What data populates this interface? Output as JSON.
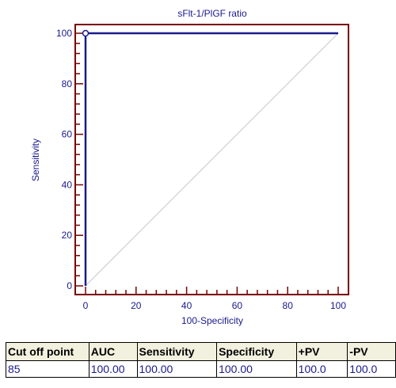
{
  "chart_data": {
    "type": "line",
    "title": "sFlt-1/PlGF ratio",
    "xlabel": "100-Specificity",
    "ylabel": "Sensitivity",
    "xlim": [
      0,
      100
    ],
    "ylim": [
      0,
      100
    ],
    "xticks": [
      0,
      20,
      40,
      60,
      80,
      100
    ],
    "yticks": [
      0,
      20,
      40,
      60,
      80,
      100
    ],
    "grid": false,
    "series": [
      {
        "x": [
          0,
          0,
          100
        ],
        "y": [
          0,
          100,
          100
        ],
        "color": "#1a1a8c"
      }
    ],
    "reference_line": {
      "x": [
        0,
        100
      ],
      "y": [
        0,
        100
      ],
      "color": "#c8c8c8"
    },
    "marker": {
      "x": 0,
      "y": 100
    },
    "frame_color": "#7a0000"
  },
  "table": {
    "headers": [
      "Cut off point",
      "AUC",
      "Sensitivity",
      "Specificity",
      "+PV",
      "-PV"
    ],
    "rows": [
      [
        "85",
        "100.00",
        "100.00",
        "100.00",
        "100.0",
        "100.0"
      ]
    ]
  }
}
